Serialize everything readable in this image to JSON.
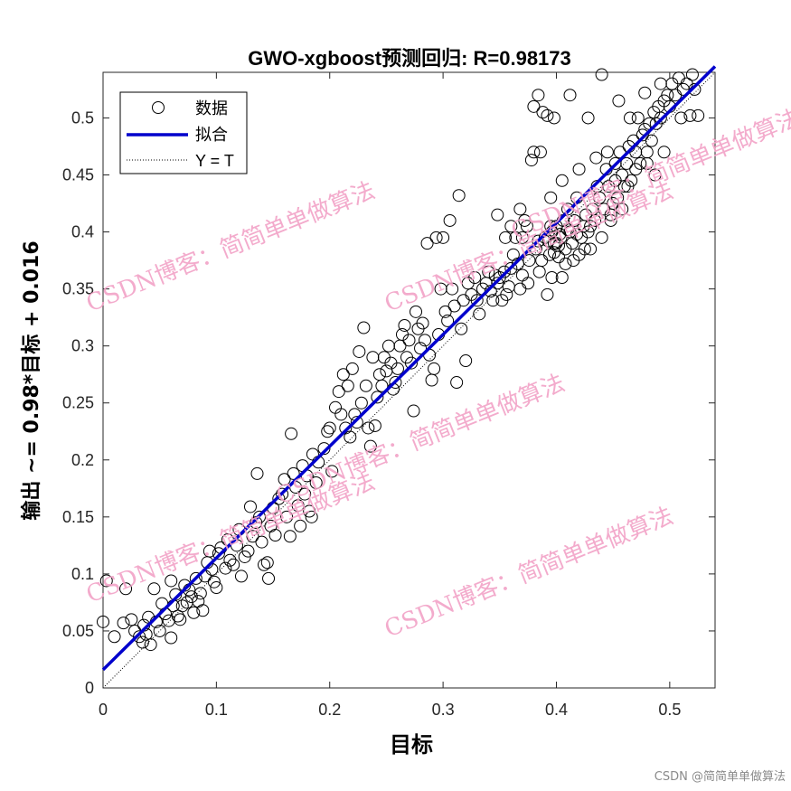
{
  "chart_data": {
    "type": "scatter",
    "title": "GWO-xgboost预测回归: R=0.98173",
    "xlabel": "目标",
    "ylabel": "输出 ~= 0.98*目标 + 0.016",
    "xlim": [
      0,
      0.54
    ],
    "ylim": [
      0,
      0.54
    ],
    "xticks": [
      "0",
      "0.1",
      "0.2",
      "0.3",
      "0.4",
      "0.5"
    ],
    "yticks": [
      "0",
      "0.05",
      "0.1",
      "0.15",
      "0.2",
      "0.25",
      "0.3",
      "0.35",
      "0.4",
      "0.45",
      "0.5"
    ],
    "fit": {
      "slope": 0.98,
      "intercept": 0.016
    },
    "legend": {
      "position": "top-left",
      "entries": [
        {
          "label": "数据",
          "kind": "marker"
        },
        {
          "label": "拟合",
          "kind": "line"
        },
        {
          "label": "Y = T",
          "kind": "dotted"
        }
      ]
    },
    "series": [
      {
        "name": "数据",
        "points": [
          [
            0.0,
            0.058
          ],
          [
            0.003,
            0.094
          ],
          [
            0.01,
            0.045
          ],
          [
            0.018,
            0.057
          ],
          [
            0.02,
            0.087
          ],
          [
            0.025,
            0.06
          ],
          [
            0.028,
            0.05
          ],
          [
            0.032,
            0.045
          ],
          [
            0.035,
            0.04
          ],
          [
            0.036,
            0.055
          ],
          [
            0.038,
            0.047
          ],
          [
            0.04,
            0.062
          ],
          [
            0.042,
            0.038
          ],
          [
            0.045,
            0.087
          ],
          [
            0.047,
            0.058
          ],
          [
            0.05,
            0.05
          ],
          [
            0.052,
            0.074
          ],
          [
            0.055,
            0.065
          ],
          [
            0.058,
            0.059
          ],
          [
            0.06,
            0.044
          ],
          [
            0.06,
            0.094
          ],
          [
            0.062,
            0.072
          ],
          [
            0.064,
            0.082
          ],
          [
            0.066,
            0.063
          ],
          [
            0.068,
            0.06
          ],
          [
            0.07,
            0.072
          ],
          [
            0.072,
            0.09
          ],
          [
            0.074,
            0.075
          ],
          [
            0.076,
            0.086
          ],
          [
            0.078,
            0.08
          ],
          [
            0.08,
            0.066
          ],
          [
            0.082,
            0.096
          ],
          [
            0.084,
            0.076
          ],
          [
            0.086,
            0.083
          ],
          [
            0.088,
            0.068
          ],
          [
            0.09,
            0.098
          ],
          [
            0.092,
            0.11
          ],
          [
            0.094,
            0.12
          ],
          [
            0.096,
            0.104
          ],
          [
            0.098,
            0.093
          ],
          [
            0.1,
            0.088
          ],
          [
            0.102,
            0.118
          ],
          [
            0.104,
            0.123
          ],
          [
            0.108,
            0.105
          ],
          [
            0.11,
            0.13
          ],
          [
            0.112,
            0.112
          ],
          [
            0.115,
            0.108
          ],
          [
            0.118,
            0.125
          ],
          [
            0.12,
            0.139
          ],
          [
            0.122,
            0.098
          ],
          [
            0.125,
            0.115
          ],
          [
            0.128,
            0.12
          ],
          [
            0.13,
            0.159
          ],
          [
            0.132,
            0.133
          ],
          [
            0.135,
            0.145
          ],
          [
            0.136,
            0.188
          ],
          [
            0.138,
            0.15
          ],
          [
            0.14,
            0.128
          ],
          [
            0.142,
            0.108
          ],
          [
            0.145,
            0.11
          ],
          [
            0.146,
            0.096
          ],
          [
            0.148,
            0.142
          ],
          [
            0.15,
            0.158
          ],
          [
            0.152,
            0.134
          ],
          [
            0.155,
            0.166
          ],
          [
            0.158,
            0.17
          ],
          [
            0.16,
            0.183
          ],
          [
            0.162,
            0.15
          ],
          [
            0.165,
            0.133
          ],
          [
            0.166,
            0.223
          ],
          [
            0.168,
            0.188
          ],
          [
            0.17,
            0.176
          ],
          [
            0.172,
            0.16
          ],
          [
            0.174,
            0.142
          ],
          [
            0.176,
            0.195
          ],
          [
            0.178,
            0.17
          ],
          [
            0.18,
            0.186
          ],
          [
            0.182,
            0.155
          ],
          [
            0.184,
            0.15
          ],
          [
            0.185,
            0.205
          ],
          [
            0.188,
            0.18
          ],
          [
            0.19,
            0.198
          ],
          [
            0.195,
            0.21
          ],
          [
            0.198,
            0.225
          ],
          [
            0.2,
            0.228
          ],
          [
            0.202,
            0.19
          ],
          [
            0.205,
            0.246
          ],
          [
            0.208,
            0.26
          ],
          [
            0.21,
            0.24
          ],
          [
            0.212,
            0.275
          ],
          [
            0.214,
            0.228
          ],
          [
            0.216,
            0.265
          ],
          [
            0.218,
            0.22
          ],
          [
            0.22,
            0.28
          ],
          [
            0.222,
            0.24
          ],
          [
            0.224,
            0.233
          ],
          [
            0.226,
            0.295
          ],
          [
            0.228,
            0.25
          ],
          [
            0.23,
            0.316
          ],
          [
            0.232,
            0.265
          ],
          [
            0.234,
            0.228
          ],
          [
            0.236,
            0.212
          ],
          [
            0.238,
            0.29
          ],
          [
            0.24,
            0.23
          ],
          [
            0.242,
            0.255
          ],
          [
            0.244,
            0.275
          ],
          [
            0.246,
            0.265
          ],
          [
            0.248,
            0.29
          ],
          [
            0.25,
            0.278
          ],
          [
            0.252,
            0.3
          ],
          [
            0.254,
            0.285
          ],
          [
            0.256,
            0.262
          ],
          [
            0.258,
            0.268
          ],
          [
            0.26,
            0.28
          ],
          [
            0.262,
            0.3
          ],
          [
            0.264,
            0.31
          ],
          [
            0.266,
            0.318
          ],
          [
            0.268,
            0.29
          ],
          [
            0.27,
            0.305
          ],
          [
            0.272,
            0.285
          ],
          [
            0.274,
            0.243
          ],
          [
            0.276,
            0.33
          ],
          [
            0.278,
            0.315
          ],
          [
            0.28,
            0.298
          ],
          [
            0.282,
            0.32
          ],
          [
            0.284,
            0.305
          ],
          [
            0.286,
            0.39
          ],
          [
            0.288,
            0.292
          ],
          [
            0.29,
            0.27
          ],
          [
            0.292,
            0.28
          ],
          [
            0.294,
            0.395
          ],
          [
            0.296,
            0.31
          ],
          [
            0.298,
            0.35
          ],
          [
            0.3,
            0.395
          ],
          [
            0.302,
            0.33
          ],
          [
            0.304,
            0.322
          ],
          [
            0.306,
            0.41
          ],
          [
            0.308,
            0.35
          ],
          [
            0.31,
            0.335
          ],
          [
            0.312,
            0.268
          ],
          [
            0.314,
            0.432
          ],
          [
            0.316,
            0.315
          ],
          [
            0.318,
            0.34
          ],
          [
            0.32,
            0.287
          ],
          [
            0.322,
            0.355
          ],
          [
            0.325,
            0.345
          ],
          [
            0.328,
            0.36
          ],
          [
            0.33,
            0.34
          ],
          [
            0.332,
            0.328
          ],
          [
            0.335,
            0.35
          ],
          [
            0.338,
            0.355
          ],
          [
            0.34,
            0.365
          ],
          [
            0.342,
            0.348
          ],
          [
            0.344,
            0.34
          ],
          [
            0.346,
            0.362
          ],
          [
            0.348,
            0.355
          ],
          [
            0.35,
            0.36
          ],
          [
            0.352,
            0.34
          ],
          [
            0.354,
            0.365
          ],
          [
            0.356,
            0.345
          ],
          [
            0.358,
            0.352
          ],
          [
            0.36,
            0.368
          ],
          [
            0.362,
            0.38
          ],
          [
            0.364,
            0.395
          ],
          [
            0.366,
            0.372
          ],
          [
            0.368,
            0.35
          ],
          [
            0.37,
            0.362
          ],
          [
            0.372,
            0.41
          ],
          [
            0.374,
            0.405
          ],
          [
            0.376,
            0.375
          ],
          [
            0.378,
            0.463
          ],
          [
            0.38,
            0.47
          ],
          [
            0.382,
            0.385
          ],
          [
            0.384,
            0.392
          ],
          [
            0.386,
            0.47
          ],
          [
            0.388,
            0.505
          ],
          [
            0.39,
            0.395
          ],
          [
            0.392,
            0.502
          ],
          [
            0.394,
            0.38
          ],
          [
            0.396,
            0.4
          ],
          [
            0.398,
            0.39
          ],
          [
            0.4,
            0.405
          ],
          [
            0.402,
            0.378
          ],
          [
            0.404,
            0.395
          ],
          [
            0.406,
            0.41
          ],
          [
            0.408,
            0.385
          ],
          [
            0.41,
            0.42
          ],
          [
            0.412,
            0.4
          ],
          [
            0.414,
            0.39
          ],
          [
            0.416,
            0.41
          ],
          [
            0.418,
            0.43
          ],
          [
            0.42,
            0.38
          ],
          [
            0.422,
            0.395
          ],
          [
            0.424,
            0.405
          ],
          [
            0.426,
            0.415
          ],
          [
            0.428,
            0.4
          ],
          [
            0.43,
            0.385
          ],
          [
            0.432,
            0.42
          ],
          [
            0.434,
            0.41
          ],
          [
            0.436,
            0.44
          ],
          [
            0.438,
            0.43
          ],
          [
            0.44,
            0.395
          ],
          [
            0.442,
            0.42
          ],
          [
            0.444,
            0.455
          ],
          [
            0.446,
            0.44
          ],
          [
            0.448,
            0.41
          ],
          [
            0.45,
            0.425
          ],
          [
            0.452,
            0.445
          ],
          [
            0.454,
            0.43
          ],
          [
            0.456,
            0.47
          ],
          [
            0.458,
            0.45
          ],
          [
            0.46,
            0.44
          ],
          [
            0.462,
            0.46
          ],
          [
            0.464,
            0.475
          ],
          [
            0.466,
            0.445
          ],
          [
            0.468,
            0.48
          ],
          [
            0.47,
            0.47
          ],
          [
            0.472,
            0.5
          ],
          [
            0.474,
            0.46
          ],
          [
            0.476,
            0.485
          ],
          [
            0.478,
            0.49
          ],
          [
            0.48,
            0.47
          ],
          [
            0.482,
            0.495
          ],
          [
            0.484,
            0.48
          ],
          [
            0.486,
            0.505
          ],
          [
            0.488,
            0.495
          ],
          [
            0.49,
            0.51
          ],
          [
            0.492,
            0.5
          ],
          [
            0.495,
            0.515
          ],
          [
            0.498,
            0.52
          ],
          [
            0.5,
            0.51
          ],
          [
            0.502,
            0.53
          ],
          [
            0.505,
            0.52
          ],
          [
            0.508,
            0.535
          ],
          [
            0.51,
            0.5
          ],
          [
            0.512,
            0.525
          ],
          [
            0.515,
            0.53
          ],
          [
            0.518,
            0.502
          ],
          [
            0.52,
            0.538
          ],
          [
            0.522,
            0.525
          ],
          [
            0.525,
            0.502
          ],
          [
            0.384,
            0.52
          ],
          [
            0.398,
            0.5
          ],
          [
            0.412,
            0.52
          ],
          [
            0.428,
            0.5
          ],
          [
            0.44,
            0.538
          ],
          [
            0.455,
            0.515
          ],
          [
            0.465,
            0.5
          ],
          [
            0.478,
            0.522
          ],
          [
            0.492,
            0.53
          ],
          [
            0.38,
            0.51
          ],
          [
            0.37,
            0.395
          ],
          [
            0.385,
            0.365
          ],
          [
            0.392,
            0.345
          ],
          [
            0.405,
            0.36
          ],
          [
            0.415,
            0.375
          ],
          [
            0.425,
            0.385
          ],
          [
            0.375,
            0.355
          ],
          [
            0.368,
            0.42
          ],
          [
            0.36,
            0.405
          ],
          [
            0.355,
            0.395
          ],
          [
            0.348,
            0.415
          ],
          [
            0.395,
            0.43
          ],
          [
            0.405,
            0.445
          ],
          [
            0.42,
            0.455
          ],
          [
            0.435,
            0.465
          ],
          [
            0.445,
            0.47
          ],
          [
            0.452,
            0.46
          ],
          [
            0.463,
            0.44
          ],
          [
            0.47,
            0.455
          ],
          [
            0.48,
            0.46
          ],
          [
            0.487,
            0.45
          ],
          [
            0.495,
            0.47
          ],
          [
            0.458,
            0.42
          ],
          [
            0.448,
            0.415
          ],
          [
            0.43,
            0.405
          ],
          [
            0.418,
            0.398
          ],
          [
            0.408,
            0.372
          ],
          [
            0.396,
            0.36
          ],
          [
            0.387,
            0.375
          ],
          [
            0.4,
            0.39
          ],
          [
            0.403,
            0.398
          ],
          [
            0.398,
            0.382
          ],
          [
            0.393,
            0.392
          ],
          [
            0.402,
            0.388
          ],
          [
            0.41,
            0.402
          ],
          [
            0.395,
            0.405
          ]
        ]
      }
    ]
  },
  "watermarks": [
    "CSDN博客：简简单单做算法",
    "CSDN博客：简简单单做算法",
    "CSDN博客：简简单单做算法",
    "CSDN博客：简简单单做算法",
    "CSDN博客：简简单单做算法",
    "CSDN博客：简简单单做算法"
  ],
  "footer": "CSDN @简简单单做算法",
  "colors": {
    "fit": "#0000cc",
    "marker": "#000000",
    "watermark": "#f2a2c7",
    "axes": "#262626"
  }
}
